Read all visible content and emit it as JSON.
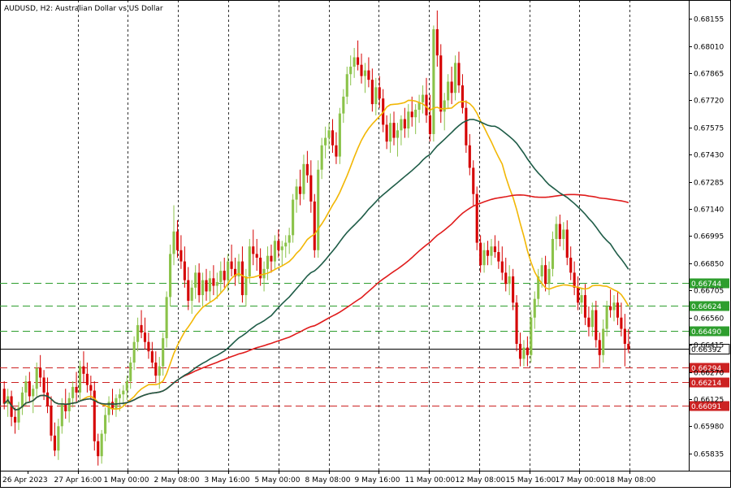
{
  "chart_data": {
    "type": "candlestick",
    "title": "AUDUSD, H2:  Australian Dollar vs US Dollar",
    "symbol": "AUDUSD",
    "timeframe": "H2",
    "description": "Australian Dollar vs US Dollar",
    "ylim": [
      0.6576,
      0.6823
    ],
    "grid": "vertical dashed only",
    "x_tick_labels": [
      "26 Apr 2023",
      "27 Apr 16:00",
      "1 May 00:00",
      "2 May 08:00",
      "3 May 16:00",
      "5 May 00:00",
      "8 May 08:00",
      "9 May 16:00",
      "11 May 00:00",
      "12 May 08:00",
      "15 May 16:00",
      "17 May 00:00",
      "18 May 08:00"
    ],
    "y_tick_values": [
      "0.68155",
      "0.68010",
      "0.67865",
      "0.67720",
      "0.67575",
      "0.67430",
      "0.67285",
      "0.67140",
      "0.66995",
      "0.66850",
      "0.66705",
      "0.66560",
      "0.66415",
      "0.66270",
      "0.66125",
      "0.65980",
      "0.65835"
    ],
    "colors": {
      "bull": "#8bc34a",
      "bear": "#d50000",
      "ma_fast": "#f2b705",
      "ma_slow": "#e01c1c",
      "ma_long": "#1e5c47",
      "support_lines": "#cc2222",
      "resistance_lines": "#2e9e2e",
      "current_price": "#000000"
    },
    "current_price": {
      "label": "0.66392",
      "value": 0.66392
    },
    "resistance_levels": [
      {
        "label": "0.66744",
        "value": 0.66744
      },
      {
        "label": "0.66624",
        "value": 0.66624
      },
      {
        "label": "0.66490",
        "value": 0.6649
      }
    ],
    "support_levels": [
      {
        "label": "0.66294",
        "value": 0.66294
      },
      {
        "label": "0.66214",
        "value": 0.66214
      },
      {
        "label": "0.66091",
        "value": 0.66091
      }
    ],
    "ohlc": [
      [
        0.6618,
        0.6622,
        0.6607,
        0.661
      ],
      [
        0.661,
        0.6618,
        0.6603,
        0.6614
      ],
      [
        0.6614,
        0.6617,
        0.6598,
        0.6603
      ],
      [
        0.6603,
        0.6608,
        0.6594,
        0.66
      ],
      [
        0.66,
        0.6611,
        0.6596,
        0.6608
      ],
      [
        0.6608,
        0.6619,
        0.6604,
        0.6616
      ],
      [
        0.6616,
        0.6625,
        0.6609,
        0.6622
      ],
      [
        0.6622,
        0.6627,
        0.6611,
        0.6614
      ],
      [
        0.6614,
        0.662,
        0.6605,
        0.6618
      ],
      [
        0.6618,
        0.6632,
        0.6614,
        0.6629
      ],
      [
        0.6629,
        0.6636,
        0.6619,
        0.6624
      ],
      [
        0.6624,
        0.6628,
        0.6612,
        0.6616
      ],
      [
        0.6616,
        0.6624,
        0.6605,
        0.6609
      ],
      [
        0.6609,
        0.6614,
        0.659,
        0.6593
      ],
      [
        0.6593,
        0.66,
        0.6582,
        0.6585
      ],
      [
        0.6585,
        0.6602,
        0.658,
        0.6598
      ],
      [
        0.6598,
        0.6613,
        0.6594,
        0.661
      ],
      [
        0.661,
        0.6618,
        0.6602,
        0.6606
      ],
      [
        0.6606,
        0.6616,
        0.66,
        0.6613
      ],
      [
        0.6613,
        0.6622,
        0.6608,
        0.6619
      ],
      [
        0.6619,
        0.6627,
        0.6611,
        0.6616
      ],
      [
        0.6616,
        0.6633,
        0.6612,
        0.663
      ],
      [
        0.663,
        0.6638,
        0.6621,
        0.6626
      ],
      [
        0.6626,
        0.6632,
        0.6616,
        0.662
      ],
      [
        0.662,
        0.6625,
        0.6612,
        0.6617
      ],
      [
        0.6617,
        0.6622,
        0.6585,
        0.659
      ],
      [
        0.659,
        0.6594,
        0.6577,
        0.6582
      ],
      [
        0.6582,
        0.6596,
        0.6578,
        0.6594
      ],
      [
        0.6594,
        0.6608,
        0.659,
        0.6604
      ],
      [
        0.6604,
        0.6614,
        0.66,
        0.6611
      ],
      [
        0.6611,
        0.6618,
        0.6604,
        0.6607
      ],
      [
        0.6607,
        0.6615,
        0.6603,
        0.6613
      ],
      [
        0.6613,
        0.6618,
        0.6606,
        0.6615
      ],
      [
        0.6615,
        0.662,
        0.6609,
        0.6617
      ],
      [
        0.6617,
        0.6625,
        0.6612,
        0.6622
      ],
      [
        0.6622,
        0.6635,
        0.6618,
        0.6632
      ],
      [
        0.6632,
        0.6646,
        0.6628,
        0.6643
      ],
      [
        0.6643,
        0.6656,
        0.6638,
        0.6652
      ],
      [
        0.6652,
        0.666,
        0.6645,
        0.6648
      ],
      [
        0.6648,
        0.6656,
        0.6639,
        0.6643
      ],
      [
        0.6643,
        0.6648,
        0.6634,
        0.6638
      ],
      [
        0.6638,
        0.6643,
        0.6629,
        0.6632
      ],
      [
        0.6632,
        0.6638,
        0.6621,
        0.6625
      ],
      [
        0.6625,
        0.6635,
        0.6618,
        0.663
      ],
      [
        0.663,
        0.6648,
        0.6625,
        0.6645
      ],
      [
        0.6645,
        0.667,
        0.664,
        0.6667
      ],
      [
        0.6667,
        0.6695,
        0.6662,
        0.669
      ],
      [
        0.669,
        0.6716,
        0.6684,
        0.6702
      ],
      [
        0.6702,
        0.6708,
        0.6688,
        0.6692
      ],
      [
        0.6692,
        0.67,
        0.6682,
        0.6686
      ],
      [
        0.6686,
        0.6694,
        0.6672,
        0.6676
      ],
      [
        0.6676,
        0.6683,
        0.666,
        0.6665
      ],
      [
        0.6665,
        0.6676,
        0.6658,
        0.6672
      ],
      [
        0.6672,
        0.6684,
        0.6666,
        0.668
      ],
      [
        0.668,
        0.6685,
        0.6664,
        0.6668
      ],
      [
        0.6668,
        0.668,
        0.6662,
        0.6676
      ],
      [
        0.6676,
        0.6682,
        0.6665,
        0.667
      ],
      [
        0.667,
        0.6681,
        0.6664,
        0.6677
      ],
      [
        0.6677,
        0.6684,
        0.6668,
        0.6673
      ],
      [
        0.6673,
        0.668,
        0.6666,
        0.6675
      ],
      [
        0.6675,
        0.6686,
        0.6669,
        0.6681
      ],
      [
        0.6681,
        0.6688,
        0.6672,
        0.6676
      ],
      [
        0.6676,
        0.669,
        0.667,
        0.6686
      ],
      [
        0.6686,
        0.6695,
        0.6678,
        0.6682
      ],
      [
        0.6682,
        0.6688,
        0.6673,
        0.6678
      ],
      [
        0.6678,
        0.669,
        0.6674,
        0.6686
      ],
      [
        0.6686,
        0.6694,
        0.6664,
        0.6668
      ],
      [
        0.6668,
        0.6682,
        0.6662,
        0.6678
      ],
      [
        0.6678,
        0.6698,
        0.6674,
        0.6694
      ],
      [
        0.6694,
        0.6703,
        0.6684,
        0.669
      ],
      [
        0.669,
        0.6698,
        0.6681,
        0.6688
      ],
      [
        0.6688,
        0.6693,
        0.6673,
        0.6677
      ],
      [
        0.6677,
        0.6686,
        0.667,
        0.6682
      ],
      [
        0.6682,
        0.6694,
        0.6676,
        0.6689
      ],
      [
        0.6689,
        0.6695,
        0.668,
        0.6686
      ],
      [
        0.6686,
        0.67,
        0.6682,
        0.6697
      ],
      [
        0.6697,
        0.6703,
        0.6688,
        0.6692
      ],
      [
        0.6692,
        0.6697,
        0.6684,
        0.6694
      ],
      [
        0.6694,
        0.67,
        0.6688,
        0.6696
      ],
      [
        0.6696,
        0.6704,
        0.669,
        0.67
      ],
      [
        0.67,
        0.6722,
        0.6696,
        0.6719
      ],
      [
        0.6719,
        0.673,
        0.6712,
        0.6726
      ],
      [
        0.6726,
        0.6735,
        0.6716,
        0.6722
      ],
      [
        0.6722,
        0.6743,
        0.6719,
        0.6738
      ],
      [
        0.6738,
        0.6745,
        0.6728,
        0.6732
      ],
      [
        0.6732,
        0.674,
        0.6712,
        0.6718
      ],
      [
        0.6718,
        0.6722,
        0.6688,
        0.6692
      ],
      [
        0.6692,
        0.674,
        0.6688,
        0.6735
      ],
      [
        0.6735,
        0.6752,
        0.673,
        0.6748
      ],
      [
        0.6748,
        0.6758,
        0.6741,
        0.6752
      ],
      [
        0.6752,
        0.676,
        0.6746,
        0.6756
      ],
      [
        0.6756,
        0.6762,
        0.6744,
        0.6748
      ],
      [
        0.6748,
        0.6755,
        0.6738,
        0.6742
      ],
      [
        0.6742,
        0.6768,
        0.6738,
        0.6765
      ],
      [
        0.6765,
        0.6778,
        0.676,
        0.6774
      ],
      [
        0.6774,
        0.679,
        0.677,
        0.6786
      ],
      [
        0.6786,
        0.6796,
        0.678,
        0.679
      ],
      [
        0.679,
        0.68,
        0.6784,
        0.6795
      ],
      [
        0.6795,
        0.6804,
        0.6788,
        0.6791
      ],
      [
        0.6791,
        0.6797,
        0.6781,
        0.6785
      ],
      [
        0.6785,
        0.6792,
        0.6776,
        0.6788
      ],
      [
        0.6788,
        0.6795,
        0.6779,
        0.6783
      ],
      [
        0.6783,
        0.6789,
        0.6766,
        0.677
      ],
      [
        0.677,
        0.6784,
        0.6764,
        0.6779
      ],
      [
        0.6779,
        0.6785,
        0.6768,
        0.6773
      ],
      [
        0.6773,
        0.6778,
        0.6755,
        0.6759
      ],
      [
        0.6759,
        0.6764,
        0.6746,
        0.675
      ],
      [
        0.675,
        0.6765,
        0.6744,
        0.676
      ],
      [
        0.676,
        0.6766,
        0.6748,
        0.6752
      ],
      [
        0.6752,
        0.676,
        0.6742,
        0.6756
      ],
      [
        0.6756,
        0.6764,
        0.6748,
        0.6762
      ],
      [
        0.6762,
        0.6768,
        0.6752,
        0.6757
      ],
      [
        0.6757,
        0.677,
        0.6752,
        0.6766
      ],
      [
        0.6766,
        0.6774,
        0.6758,
        0.6763
      ],
      [
        0.6763,
        0.677,
        0.6754,
        0.6767
      ],
      [
        0.6767,
        0.6775,
        0.676,
        0.6771
      ],
      [
        0.6771,
        0.678,
        0.6765,
        0.6775
      ],
      [
        0.6775,
        0.6784,
        0.676,
        0.6764
      ],
      [
        0.6764,
        0.6775,
        0.675,
        0.6754
      ],
      [
        0.6754,
        0.6812,
        0.675,
        0.681
      ],
      [
        0.681,
        0.682,
        0.679,
        0.6796
      ],
      [
        0.6796,
        0.6802,
        0.676,
        0.6766
      ],
      [
        0.6766,
        0.6776,
        0.6756,
        0.6772
      ],
      [
        0.6772,
        0.6786,
        0.6768,
        0.6782
      ],
      [
        0.6782,
        0.679,
        0.677,
        0.6776
      ],
      [
        0.6776,
        0.6796,
        0.6772,
        0.6792
      ],
      [
        0.6792,
        0.6798,
        0.6776,
        0.678
      ],
      [
        0.678,
        0.6786,
        0.6765,
        0.6768
      ],
      [
        0.6768,
        0.6772,
        0.6744,
        0.6748
      ],
      [
        0.6748,
        0.6754,
        0.6732,
        0.6736
      ],
      [
        0.6736,
        0.674,
        0.6716,
        0.6722
      ],
      [
        0.6722,
        0.6726,
        0.6692,
        0.6696
      ],
      [
        0.6696,
        0.67,
        0.668,
        0.6684
      ],
      [
        0.6684,
        0.6696,
        0.668,
        0.6692
      ],
      [
        0.6692,
        0.6697,
        0.6684,
        0.6689
      ],
      [
        0.6689,
        0.6698,
        0.6684,
        0.6694
      ],
      [
        0.6694,
        0.67,
        0.6688,
        0.6691
      ],
      [
        0.6691,
        0.6697,
        0.6682,
        0.6686
      ],
      [
        0.6686,
        0.6694,
        0.6676,
        0.668
      ],
      [
        0.668,
        0.6688,
        0.667,
        0.6674
      ],
      [
        0.6674,
        0.6684,
        0.6668,
        0.6678
      ],
      [
        0.6678,
        0.6682,
        0.666,
        0.6664
      ],
      [
        0.6664,
        0.6668,
        0.6638,
        0.6642
      ],
      [
        0.6642,
        0.6648,
        0.663,
        0.6634
      ],
      [
        0.6634,
        0.6644,
        0.663,
        0.664
      ],
      [
        0.664,
        0.6646,
        0.663,
        0.6636
      ],
      [
        0.6636,
        0.666,
        0.6632,
        0.6656
      ],
      [
        0.6656,
        0.667,
        0.665,
        0.6666
      ],
      [
        0.6666,
        0.6682,
        0.6662,
        0.6678
      ],
      [
        0.6678,
        0.6688,
        0.6672,
        0.6684
      ],
      [
        0.6684,
        0.6689,
        0.667,
        0.6674
      ],
      [
        0.6674,
        0.6686,
        0.6668,
        0.6682
      ],
      [
        0.6682,
        0.6702,
        0.6678,
        0.6698
      ],
      [
        0.6698,
        0.671,
        0.6692,
        0.6706
      ],
      [
        0.6706,
        0.6711,
        0.6694,
        0.6698
      ],
      [
        0.6698,
        0.6707,
        0.6692,
        0.6703
      ],
      [
        0.6703,
        0.6708,
        0.6684,
        0.6688
      ],
      [
        0.6688,
        0.6694,
        0.6676,
        0.668
      ],
      [
        0.668,
        0.6686,
        0.6668,
        0.6672
      ],
      [
        0.6672,
        0.6678,
        0.666,
        0.6664
      ],
      [
        0.6664,
        0.6672,
        0.6658,
        0.6668
      ],
      [
        0.6668,
        0.6674,
        0.6652,
        0.6656
      ],
      [
        0.6656,
        0.6662,
        0.6646,
        0.6651
      ],
      [
        0.6651,
        0.6664,
        0.6646,
        0.666
      ],
      [
        0.666,
        0.6665,
        0.664,
        0.6644
      ],
      [
        0.6644,
        0.6648,
        0.6629,
        0.6636
      ],
      [
        0.6636,
        0.6655,
        0.6632,
        0.665
      ],
      [
        0.665,
        0.6665,
        0.6646,
        0.6662
      ],
      [
        0.6662,
        0.6671,
        0.6656,
        0.666
      ],
      [
        0.666,
        0.6668,
        0.6654,
        0.6664
      ],
      [
        0.6664,
        0.667,
        0.6652,
        0.6656
      ],
      [
        0.6656,
        0.6664,
        0.6646,
        0.665
      ],
      [
        0.665,
        0.6658,
        0.663,
        0.6642
      ],
      [
        0.6642,
        0.665,
        0.6637,
        0.6639
      ]
    ]
  }
}
